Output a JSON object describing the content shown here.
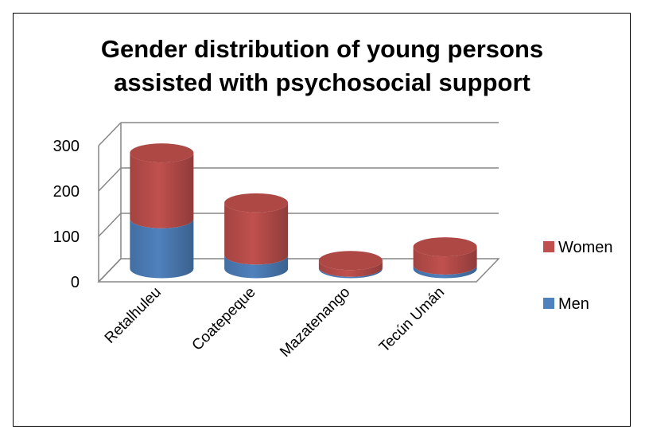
{
  "chart_data": {
    "type": "bar",
    "stacked": true,
    "style": "3d-cylinder",
    "title": "Gender distribution of young persons assisted with psychosocial support",
    "title_lines": [
      "Gender distribution of young persons",
      "assisted with psychosocial support"
    ],
    "categories": [
      "Retalhuleu",
      "Coatepeque",
      "Mazatenango",
      "Tecún Umán"
    ],
    "series": [
      {
        "name": "Men",
        "color": "#4F81BD",
        "values": [
          110,
          30,
          3,
          8
        ]
      },
      {
        "name": "Women",
        "color": "#C0504D",
        "values": [
          145,
          115,
          15,
          40
        ]
      }
    ],
    "ylim": [
      0,
      300
    ],
    "yticks": [
      "0",
      "100",
      "200",
      "300"
    ],
    "grid": true,
    "legend": {
      "position": "right",
      "entries": [
        "Women",
        "Men"
      ]
    }
  }
}
